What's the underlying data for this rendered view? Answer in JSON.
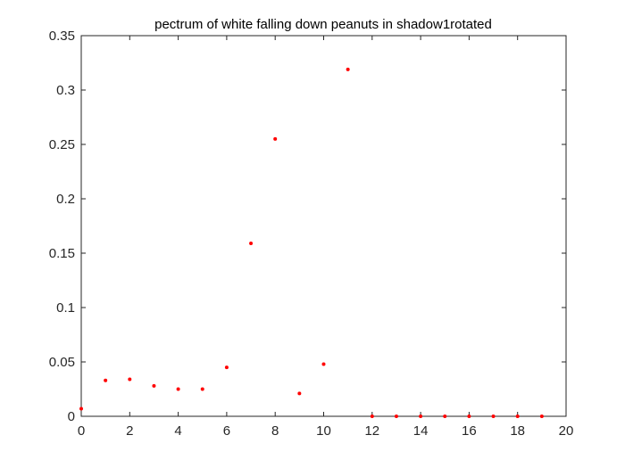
{
  "chart_data": {
    "type": "scatter",
    "title": "pectrum of white falling down peanuts in shadow1rotated",
    "xlabel": "",
    "ylabel": "",
    "xlim": [
      0,
      20
    ],
    "ylim": [
      0,
      0.35
    ],
    "x_ticks": [
      "0",
      "2",
      "4",
      "6",
      "8",
      "10",
      "12",
      "14",
      "16",
      "18",
      "20"
    ],
    "y_ticks": [
      "0",
      "0.05",
      "0.1",
      "0.15",
      "0.2",
      "0.25",
      "0.3",
      "0.35"
    ],
    "grid": false,
    "legend": "none",
    "marker_color": "#ff0000",
    "axes_color": "#262626",
    "series": [
      {
        "x": [
          0,
          1,
          2,
          3,
          4,
          5,
          6,
          7,
          8,
          9,
          10,
          11,
          12,
          13,
          14,
          15,
          16,
          17,
          18,
          19
        ],
        "y": [
          0.007,
          0.033,
          0.034,
          0.028,
          0.025,
          0.025,
          0.045,
          0.159,
          0.255,
          0.021,
          0.048,
          0.319,
          0,
          0,
          0,
          0,
          0,
          0,
          0,
          0
        ]
      }
    ]
  }
}
